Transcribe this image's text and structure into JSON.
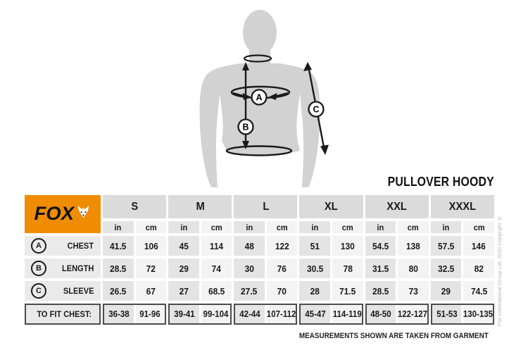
{
  "page": {
    "title_label": "PULLOVER HOODY",
    "footnote": "MEASUREMENTS SHOWN ARE TAKEN FROM GARMENT",
    "copyright": "Fox International Group Ltd. 2020 Copyright ©"
  },
  "logo": {
    "text": "FOX"
  },
  "diagram": {
    "badges": [
      "A",
      "B",
      "C"
    ]
  },
  "chart_data": {
    "type": "table",
    "title": "PULLOVER HOODY",
    "sizes": [
      "S",
      "M",
      "L",
      "XL",
      "XXL",
      "XXXL"
    ],
    "units": [
      "in",
      "cm"
    ],
    "rows": [
      {
        "key": "A",
        "label": "CHEST",
        "in": [
          "41.5",
          "45",
          "48",
          "51",
          "54.5",
          "57.5"
        ],
        "cm": [
          "106",
          "114",
          "122",
          "130",
          "138",
          "146"
        ]
      },
      {
        "key": "B",
        "label": "LENGTH",
        "in": [
          "28.5",
          "29",
          "30",
          "30.5",
          "31.5",
          "32.5"
        ],
        "cm": [
          "72",
          "74",
          "76",
          "78",
          "80",
          "82"
        ]
      },
      {
        "key": "C",
        "label": "SLEEVE",
        "in": [
          "26.5",
          "27",
          "27.5",
          "28",
          "28.5",
          "29"
        ],
        "cm": [
          "67",
          "68.5",
          "70",
          "71.5",
          "73",
          "74.5"
        ]
      }
    ],
    "fit_row": {
      "label": "TO FIT CHEST:",
      "in": [
        "36-38",
        "39-41",
        "42-44",
        "45-47",
        "48-50",
        "51-53"
      ],
      "cm": [
        "91-96",
        "99-104",
        "107-112",
        "114-119",
        "122-127",
        "130-135"
      ]
    }
  },
  "colors": {
    "brand_orange": "#F08C00",
    "header_gray": "#DBDBDB",
    "cell_in": "#E4E4E4",
    "cell_cm": "#F3F3F3",
    "label_gray": "#EAEAEA",
    "border_dark": "#4C4C4C",
    "silhouette_gray": "#D2D2D2",
    "copyright_gray": "#B5B5B5"
  }
}
